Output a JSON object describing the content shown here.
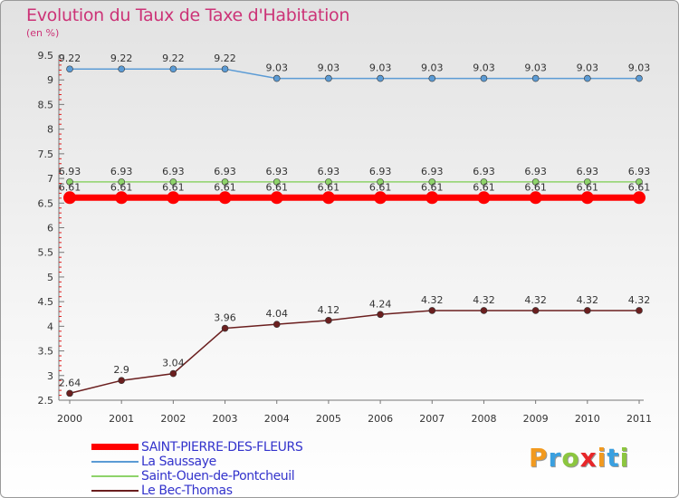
{
  "header": {
    "title": "Evolution du Taux de Taxe d'Habitation",
    "unit": "(en %)"
  },
  "logo": {
    "text": "Proxiti",
    "letters": [
      {
        "char": "P",
        "color": "#f29a1f"
      },
      {
        "char": "r",
        "color": "#3aa0e0"
      },
      {
        "char": "o",
        "color": "#8cc63f"
      },
      {
        "char": "x",
        "color": "#e8272a"
      },
      {
        "char": "i",
        "color": "#f29a1f"
      },
      {
        "char": "t",
        "color": "#3aa0e0"
      },
      {
        "char": "i",
        "color": "#8cc63f"
      }
    ]
  },
  "chart_data": {
    "type": "line",
    "title": "Evolution du Taux de Taxe d'Habitation",
    "subtitle": "(en %)",
    "xlabel": "",
    "ylabel": "",
    "x": [
      "2000",
      "2001",
      "2002",
      "2003",
      "2004",
      "2005",
      "2006",
      "2007",
      "2008",
      "2009",
      "2010",
      "2011"
    ],
    "ylim": [
      2.5,
      9.5
    ],
    "yticks": [
      2.5,
      3,
      3.5,
      4,
      4.5,
      5,
      5.5,
      6,
      6.5,
      7,
      7.5,
      8,
      8.5,
      9,
      9.5
    ],
    "grid": false,
    "legend_position": "bottom-left",
    "series": [
      {
        "name": "SAINT-PIERRE-DES-FLEURS",
        "color": "#ff0000",
        "emphasis": true,
        "values": [
          6.61,
          6.61,
          6.61,
          6.61,
          6.61,
          6.61,
          6.61,
          6.61,
          6.61,
          6.61,
          6.61,
          6.61
        ],
        "labels": [
          "6.61",
          "6.61",
          "6.61",
          "6.61",
          "6.61",
          "6.61",
          "6.61",
          "6.61",
          "6.61",
          "6.61",
          "6.61",
          "6.61"
        ]
      },
      {
        "name": "La Saussaye",
        "color": "#5b9bd5",
        "emphasis": false,
        "values": [
          9.22,
          9.22,
          9.22,
          9.22,
          9.03,
          9.03,
          9.03,
          9.03,
          9.03,
          9.03,
          9.03,
          9.03
        ],
        "labels": [
          "9.22",
          "9.22",
          "9.22",
          "9.22",
          "9.03",
          "9.03",
          "9.03",
          "9.03",
          "9.03",
          "9.03",
          "9.03",
          "9.03"
        ]
      },
      {
        "name": "Saint-Ouen-de-Pontcheuil",
        "color": "#8ed36a",
        "emphasis": false,
        "values": [
          6.93,
          6.93,
          6.93,
          6.93,
          6.93,
          6.93,
          6.93,
          6.93,
          6.93,
          6.93,
          6.93,
          6.93
        ],
        "labels": [
          "6.93",
          "6.93",
          "6.93",
          "6.93",
          "6.93",
          "6.93",
          "6.93",
          "6.93",
          "6.93",
          "6.93",
          "6.93",
          "6.93"
        ]
      },
      {
        "name": "Le Bec-Thomas",
        "color": "#6b1f1f",
        "emphasis": false,
        "values": [
          2.64,
          2.9,
          3.04,
          3.96,
          4.04,
          4.12,
          4.24,
          4.32,
          4.32,
          4.32,
          4.32,
          4.32
        ],
        "labels": [
          "2.64",
          "2.9",
          "3.04",
          "3.96",
          "4.04",
          "4.12",
          "4.24",
          "4.32",
          "4.32",
          "4.32",
          "4.32",
          "4.32"
        ]
      }
    ]
  }
}
